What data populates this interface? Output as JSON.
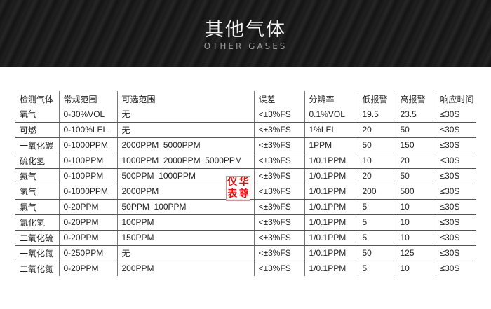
{
  "banner": {
    "title": "其他气体",
    "subtitle": "OTHER GASES"
  },
  "table": {
    "headers": [
      "检测气体",
      "常规范围",
      "可选范围",
      "误差",
      "分辨率",
      "低报警",
      "高报警",
      "响应时间"
    ],
    "rows": [
      [
        "氧气",
        "0-30%VOL",
        "无",
        "<±3%FS",
        "0.1%VOL",
        "19.5",
        "23.5",
        "≤30S"
      ],
      [
        "可燃",
        "0-100%LEL",
        "无",
        "<±3%FS",
        "1%LEL",
        "20",
        "50",
        "≤30S"
      ],
      [
        "一氧化碳",
        "0-1000PPM",
        "2000PPM  5000PPM",
        "<±3%FS",
        "1PPM",
        "50",
        "150",
        "≤30S"
      ],
      [
        "硫化氢",
        "0-100PPM",
        "1000PPM  2000PPM  5000PPM",
        "<±3%FS",
        "1/0.1PPM",
        "10",
        "20",
        "≤30S"
      ],
      [
        "氨气",
        "0-100PPM",
        "500PPM  1000PPM",
        "<±3%FS",
        "1/0.1PPM",
        "20",
        "50",
        "≤30S"
      ],
      [
        "氢气",
        "0-1000PPM",
        "2000PPM",
        "<±3%FS",
        "1/0.1PPM",
        "200",
        "500",
        "≤30S"
      ],
      [
        "氯气",
        "0-20PPM",
        "50PPM  100PPM",
        "<±3%FS",
        "1/0.1PPM",
        "5",
        "10",
        "≤30S"
      ],
      [
        "氯化氢",
        "0-20PPM",
        "100PPM",
        "<±3%FS",
        "1/0.1PPM",
        "5",
        "10",
        "≤30S"
      ],
      [
        "二氧化硫",
        "0-20PPM",
        "150PPM",
        "<±3%FS",
        "1/0.1PPM",
        "5",
        "10",
        "≤30S"
      ],
      [
        "一氧化氮",
        "0-250PPM",
        "无",
        "<±3%FS",
        "1/0.1PPM",
        "50",
        "125",
        "≤30S"
      ],
      [
        "二氧化氮",
        "0-20PPM",
        "200PPM",
        "<±3%FS",
        "1/0.1PPM",
        "5",
        "10",
        "≤30S"
      ]
    ]
  },
  "stamp": {
    "chars": [
      "仪",
      "华",
      "表",
      "尊"
    ],
    "color": "#e01010"
  }
}
